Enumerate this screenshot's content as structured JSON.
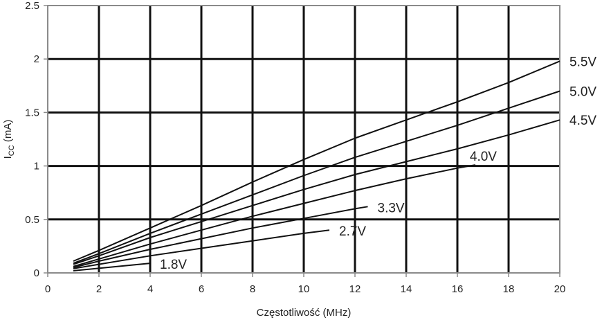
{
  "chart_data": {
    "type": "line",
    "xlabel": "Częstotliwość (MHz)",
    "ylabel": "ICC (mA)",
    "ylabel_main": "I",
    "ylabel_sub": "CC",
    "ylabel_unit": " (mA)",
    "xlim": [
      0,
      20
    ],
    "ylim": [
      0,
      2.5
    ],
    "xticks": [
      0,
      2,
      4,
      6,
      8,
      10,
      12,
      14,
      16,
      18,
      20
    ],
    "yticks": [
      0,
      0.5,
      1,
      1.5,
      2,
      2.5
    ],
    "grid": true,
    "series": [
      {
        "name": "1.8V",
        "x": [
          1,
          4
        ],
        "y": [
          0.02,
          0.09
        ]
      },
      {
        "name": "2.7V",
        "x": [
          1,
          2,
          4,
          6,
          8,
          10,
          11
        ],
        "y": [
          0.04,
          0.08,
          0.16,
          0.23,
          0.3,
          0.37,
          0.4
        ]
      },
      {
        "name": "3.3V",
        "x": [
          1,
          2,
          4,
          6,
          8,
          10,
          12,
          12.5
        ],
        "y": [
          0.05,
          0.11,
          0.22,
          0.32,
          0.42,
          0.51,
          0.6,
          0.62
        ]
      },
      {
        "name": "4.0V",
        "x": [
          1,
          2,
          4,
          6,
          8,
          10,
          12,
          14,
          16,
          16.7
        ],
        "y": [
          0.06,
          0.13,
          0.27,
          0.4,
          0.53,
          0.65,
          0.77,
          0.88,
          0.98,
          1.01
        ]
      },
      {
        "name": "4.5V",
        "x": [
          1,
          2,
          4,
          6,
          8,
          10,
          12,
          14,
          16,
          18,
          20
        ],
        "y": [
          0.08,
          0.16,
          0.33,
          0.48,
          0.63,
          0.78,
          0.92,
          1.04,
          1.16,
          1.29,
          1.43
        ]
      },
      {
        "name": "5.0V",
        "x": [
          1,
          2,
          4,
          6,
          8,
          10,
          12,
          14,
          16,
          18,
          20
        ],
        "y": [
          0.09,
          0.18,
          0.37,
          0.55,
          0.73,
          0.91,
          1.08,
          1.23,
          1.38,
          1.54,
          1.7
        ]
      },
      {
        "name": "5.5V",
        "x": [
          1,
          2,
          4,
          6,
          8,
          10,
          12,
          14,
          16,
          18,
          20
        ],
        "y": [
          0.11,
          0.21,
          0.42,
          0.63,
          0.85,
          1.06,
          1.26,
          1.43,
          1.6,
          1.78,
          1.98
        ]
      }
    ]
  }
}
